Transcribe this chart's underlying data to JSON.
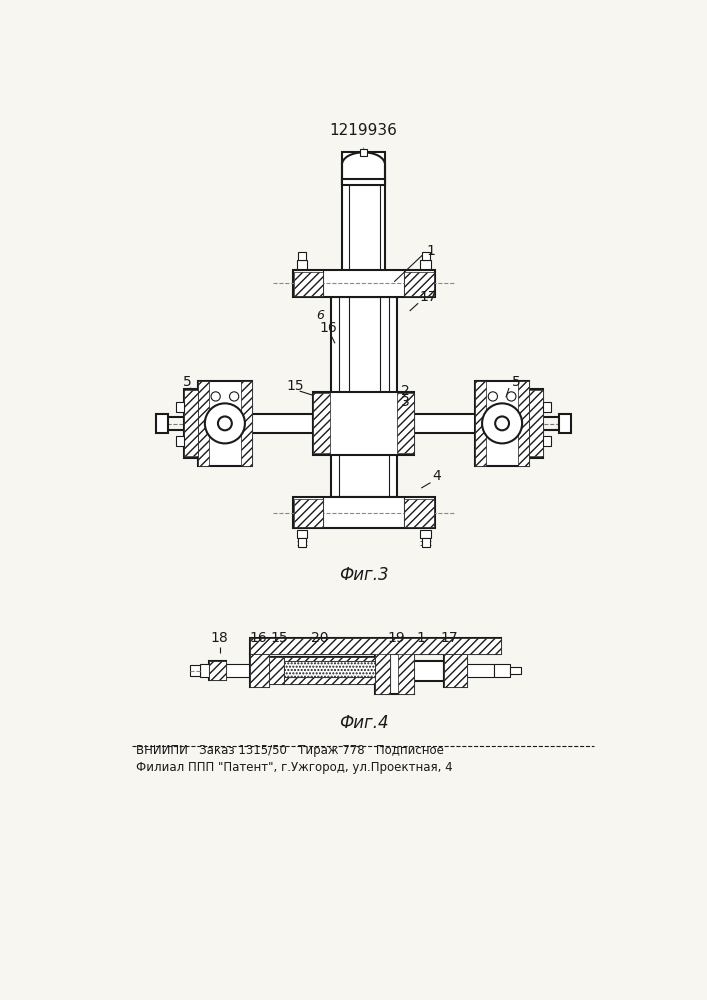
{
  "patent_number": "1219936",
  "fig3_label": "Фиг.3",
  "fig4_label": "Фиг.4",
  "footer_line1": "ВНИИПИ   Заказ 1315/50   Тираж 778   Подписное",
  "footer_line2": "Филиал ППП \"Патент\", г.Ужгород, ул.Проектная, 4",
  "bg_color": "#f8f6f0",
  "line_color": "#1a1a1a"
}
